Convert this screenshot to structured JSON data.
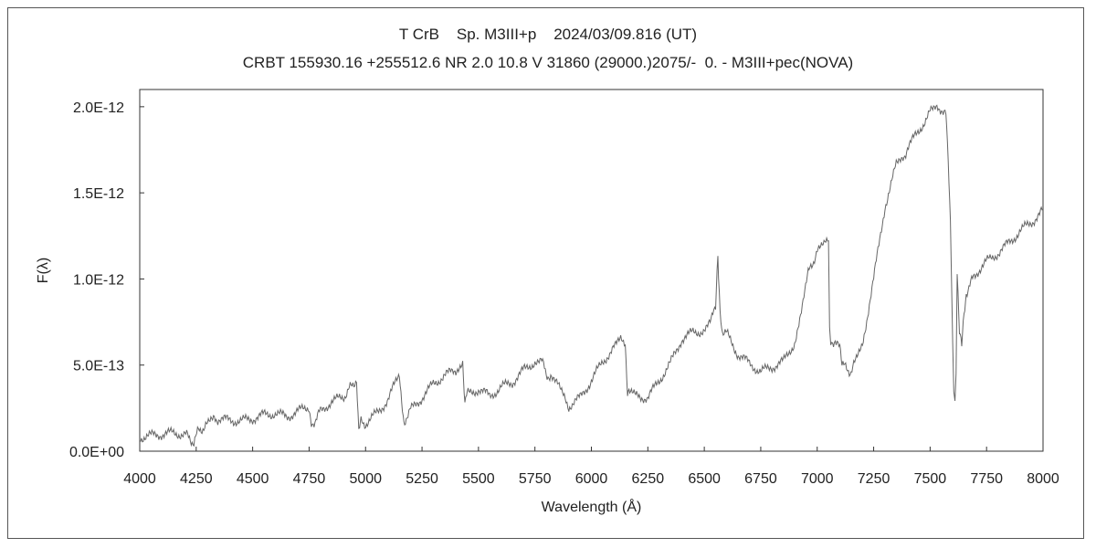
{
  "chart_data": {
    "type": "line",
    "title": "T CrB    Sp. M3III+p    2024/03/09.816 (UT)",
    "subtitle": "CRBT 155930.16 +255512.6 NR 2.0 10.8 V 31860 (29000.)2075/-  0. - M3III+pec(NOVA)",
    "xlabel": "Wavelength (Å)",
    "ylabel": "F(λ)",
    "xlim": [
      4000,
      8000
    ],
    "ylim": [
      0,
      2.1e-12
    ],
    "xticks": [
      4000,
      4250,
      4500,
      4750,
      5000,
      5250,
      5500,
      5750,
      6000,
      6250,
      6500,
      6750,
      7000,
      7250,
      7500,
      7750,
      8000
    ],
    "yticks": [
      {
        "value": 0,
        "label": "0.0E+00"
      },
      {
        "value": 5e-13,
        "label": "5.0E-13"
      },
      {
        "value": 1e-12,
        "label": "1.0E-12"
      },
      {
        "value": 1.5e-12,
        "label": "1.5E-12"
      },
      {
        "value": 2e-12,
        "label": "2.0E-12"
      }
    ],
    "grid": false,
    "line_color": "#666666",
    "series": [
      {
        "x": [
          4000,
          4050,
          4100,
          4150,
          4200,
          4240,
          4260,
          4300,
          4330,
          4350,
          4400,
          4450,
          4500,
          4550,
          4600,
          4650,
          4700,
          4750,
          4760,
          4800,
          4850,
          4900,
          4940,
          4960,
          4970,
          4980,
          5000,
          5050,
          5100,
          5150,
          5160,
          5170,
          5180,
          5200,
          5250,
          5300,
          5350,
          5400,
          5430,
          5440,
          5450,
          5500,
          5550,
          5600,
          5650,
          5700,
          5750,
          5780,
          5800,
          5820,
          5850,
          5880,
          5900,
          5950,
          6000,
          6050,
          6100,
          6130,
          6150,
          6160,
          6170,
          6200,
          6250,
          6300,
          6350,
          6400,
          6450,
          6500,
          6530,
          6550,
          6560,
          6563,
          6570,
          6580,
          6600,
          6650,
          6700,
          6750,
          6800,
          6850,
          6900,
          6930,
          6960,
          7000,
          7030,
          7050,
          7055,
          7060,
          7080,
          7100,
          7110,
          7130,
          7150,
          7170,
          7200,
          7250,
          7300,
          7350,
          7380,
          7400,
          7450,
          7500,
          7530,
          7550,
          7570,
          7580,
          7590,
          7600,
          7605,
          7610,
          7615,
          7620,
          7630,
          7640,
          7650,
          7660,
          7700,
          7750,
          7800,
          7850,
          7900,
          7950,
          8000
        ],
        "y": [
          8e-14,
          9e-14,
          1e-13,
          1.05e-13,
          1e-13,
          5e-14,
          1.2e-13,
          1.5e-13,
          1.9e-13,
          1.85e-13,
          1.8e-13,
          1.75e-13,
          1.9e-13,
          2.1e-13,
          2.2e-13,
          2e-13,
          2.3e-13,
          2.6e-13,
          1.5e-13,
          2.3e-13,
          2.9e-13,
          3.1e-13,
          3.8e-13,
          4.2e-13,
          1.4e-13,
          1.7e-13,
          1.6e-13,
          2.2e-13,
          3e-13,
          4.5e-13,
          2.6e-13,
          1.5e-13,
          2e-13,
          2.4e-13,
          3.1e-13,
          3.9e-13,
          4.4e-13,
          4.7e-13,
          5.3e-13,
          2.8e-13,
          3.3e-13,
          3.6e-13,
          3.2e-13,
          3.7e-13,
          4e-13,
          4.7e-13,
          5.2e-13,
          5.3e-13,
          4.4e-13,
          4.4e-13,
          3.9e-13,
          3e-13,
          2.6e-13,
          3.1e-13,
          4.1e-13,
          5.2e-13,
          6e-13,
          6.4e-13,
          6.4e-13,
          3.3e-13,
          3.3e-13,
          3.2e-13,
          3.1e-13,
          4.1e-13,
          5.1e-13,
          6.5e-13,
          6.9e-13,
          7e-13,
          7.5e-13,
          8.5e-13,
          1.12e-12,
          1e-12,
          8e-13,
          7e-13,
          6.8e-13,
          5.6e-13,
          5.1e-13,
          4.6e-13,
          4.9e-13,
          5.2e-13,
          6.3e-13,
          8.1e-13,
          1.03e-12,
          1.16e-12,
          1.19e-12,
          1.25e-12,
          7e-13,
          6.2e-13,
          6.5e-13,
          5.9e-13,
          5e-13,
          4.8e-13,
          4.6e-13,
          5.2e-13,
          6.2e-13,
          1e-12,
          1.42e-12,
          1.66e-12,
          1.7e-12,
          1.76e-12,
          1.86e-12,
          1.97e-12,
          1.98e-12,
          1.99e-12,
          1.95e-12,
          1.7e-12,
          1.35e-12,
          6e-13,
          3.8e-13,
          2.7e-13,
          4.5e-13,
          1.05e-12,
          7e-13,
          6e-13,
          8e-13,
          9.2e-13,
          1.03e-12,
          1.1e-12,
          1.15e-12,
          1.21e-12,
          1.28e-12,
          1.33e-12,
          1.4e-12
        ]
      }
    ]
  }
}
